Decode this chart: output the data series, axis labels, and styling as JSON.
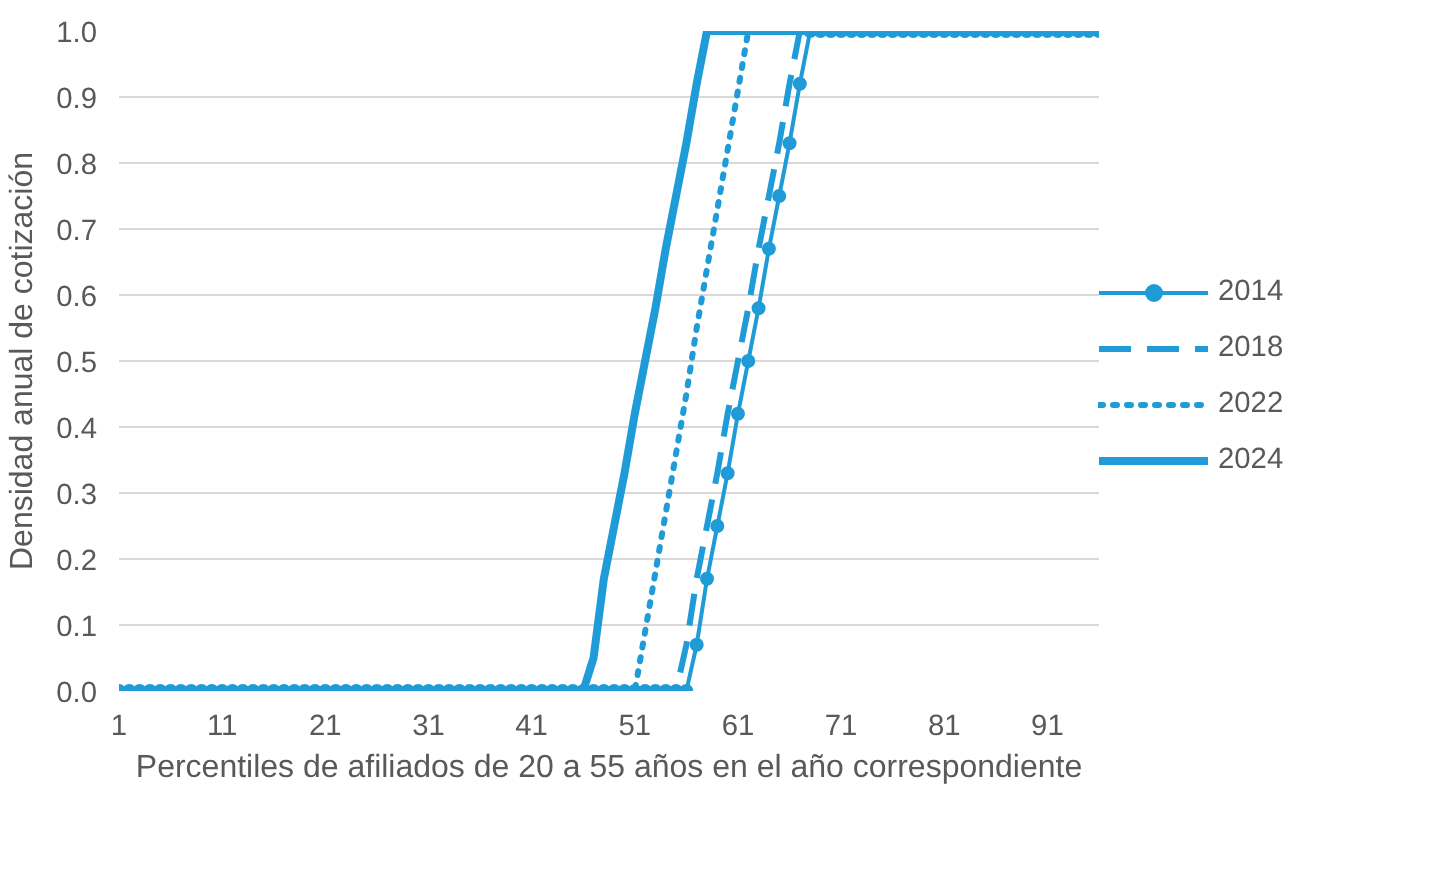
{
  "chart_data": {
    "type": "line",
    "xlabel": "Percentiles de afiliados de 20 a 55 años en el año correspondiente",
    "ylabel": "Densidad anual de cotización",
    "x": [
      1,
      2,
      3,
      4,
      5,
      6,
      7,
      8,
      9,
      10,
      11,
      12,
      13,
      14,
      15,
      16,
      17,
      18,
      19,
      20,
      21,
      22,
      23,
      24,
      25,
      26,
      27,
      28,
      29,
      30,
      31,
      32,
      33,
      34,
      35,
      36,
      37,
      38,
      39,
      40,
      41,
      42,
      43,
      44,
      45,
      46,
      47,
      48,
      49,
      50,
      51,
      52,
      53,
      54,
      55,
      56,
      57,
      58,
      59,
      60,
      61,
      62,
      63,
      64,
      65,
      66,
      67,
      68,
      69,
      70,
      71,
      72,
      73,
      74,
      75,
      76,
      77,
      78,
      79,
      80,
      81,
      82,
      83,
      84,
      85,
      86,
      87,
      88,
      89,
      90,
      91,
      92,
      93,
      94,
      95,
      96
    ],
    "xlim": [
      1,
      96
    ],
    "xticks": [
      1,
      11,
      21,
      31,
      41,
      51,
      61,
      71,
      81,
      91
    ],
    "ylim": [
      0,
      1.0
    ],
    "yticks": [
      {
        "value": 0,
        "label": "0.0"
      },
      0.1,
      0.2,
      0.3,
      0.4,
      0.5,
      0.6,
      0.7,
      0.8,
      0.9,
      {
        "value": 1,
        "label": "1.0"
      }
    ],
    "grid": "y",
    "legend": "right",
    "series": [
      {
        "name": "2014",
        "color": "#1f9bd7",
        "marker": "circle",
        "line_style": "solid",
        "values": [
          0,
          0,
          0,
          0,
          0,
          0,
          0,
          0,
          0,
          0,
          0,
          0,
          0,
          0,
          0,
          0,
          0,
          0,
          0,
          0,
          0,
          0,
          0,
          0,
          0,
          0,
          0,
          0,
          0,
          0,
          0,
          0,
          0,
          0,
          0,
          0,
          0,
          0,
          0,
          0,
          0,
          0,
          0,
          0,
          0,
          0,
          0,
          0,
          0,
          0,
          0,
          0,
          0,
          0,
          0,
          0,
          0.07,
          0.17,
          0.25,
          0.33,
          0.42,
          0.5,
          0.58,
          0.67,
          0.75,
          0.83,
          0.92,
          1,
          1,
          1,
          1,
          1,
          1,
          1,
          1,
          1,
          1,
          1,
          1,
          1,
          1,
          1,
          1,
          1,
          1,
          1,
          1,
          1,
          1,
          1,
          1,
          1,
          1,
          1,
          1,
          1
        ]
      },
      {
        "name": "2018",
        "color": "#1f9bd7",
        "marker": "none",
        "line_style": "dashed",
        "values": [
          0,
          0,
          0,
          0,
          0,
          0,
          0,
          0,
          0,
          0,
          0,
          0,
          0,
          0,
          0,
          0,
          0,
          0,
          0,
          0,
          0,
          0,
          0,
          0,
          0,
          0,
          0,
          0,
          0,
          0,
          0,
          0,
          0,
          0,
          0,
          0,
          0,
          0,
          0,
          0,
          0,
          0,
          0,
          0,
          0,
          0,
          0,
          0,
          0,
          0,
          0,
          0,
          0,
          0,
          0,
          0.07,
          0.17,
          0.25,
          0.33,
          0.42,
          0.5,
          0.58,
          0.67,
          0.75,
          0.83,
          0.92,
          1,
          1,
          1,
          1,
          1,
          1,
          1,
          1,
          1,
          1,
          1,
          1,
          1,
          1,
          1,
          1,
          1,
          1,
          1,
          1,
          1,
          1,
          1,
          1,
          1,
          1,
          1,
          1,
          1,
          1
        ]
      },
      {
        "name": "2022",
        "color": "#1f9bd7",
        "marker": "none",
        "line_style": "dotted",
        "values": [
          0,
          0,
          0,
          0,
          0,
          0,
          0,
          0,
          0,
          0,
          0,
          0,
          0,
          0,
          0,
          0,
          0,
          0,
          0,
          0,
          0,
          0,
          0,
          0,
          0,
          0,
          0,
          0,
          0,
          0,
          0,
          0,
          0,
          0,
          0,
          0,
          0,
          0,
          0,
          0,
          0,
          0,
          0,
          0,
          0,
          0,
          0,
          0,
          0,
          0,
          0,
          0.09,
          0.18,
          0.27,
          0.36,
          0.45,
          0.55,
          0.64,
          0.73,
          0.82,
          0.91,
          1,
          1,
          1,
          1,
          1,
          1,
          1,
          1,
          1,
          1,
          1,
          1,
          1,
          1,
          1,
          1,
          1,
          1,
          1,
          1,
          1,
          1,
          1,
          1,
          1,
          1,
          1,
          1,
          1,
          1,
          1,
          1,
          1,
          1,
          1
        ]
      },
      {
        "name": "2024",
        "color": "#1f9bd7",
        "marker": "none",
        "line_style": "solid",
        "values": [
          0,
          0,
          0,
          0,
          0,
          0,
          0,
          0,
          0,
          0,
          0,
          0,
          0,
          0,
          0,
          0,
          0,
          0,
          0,
          0,
          0,
          0,
          0,
          0,
          0,
          0,
          0,
          0,
          0,
          0,
          0,
          0,
          0,
          0,
          0,
          0,
          0,
          0,
          0,
          0,
          0,
          0,
          0,
          0,
          0,
          0,
          0.05,
          0.17,
          0.25,
          0.33,
          0.42,
          0.5,
          0.58,
          0.67,
          0.75,
          0.83,
          0.92,
          1,
          1,
          1,
          1,
          1,
          1,
          1,
          1,
          1,
          1,
          1,
          1,
          1,
          1,
          1,
          1,
          1,
          1,
          1,
          1,
          1,
          1,
          1,
          1,
          1,
          1,
          1,
          1,
          1,
          1,
          1,
          1,
          1,
          1,
          1,
          1,
          1,
          1,
          1
        ]
      }
    ]
  }
}
